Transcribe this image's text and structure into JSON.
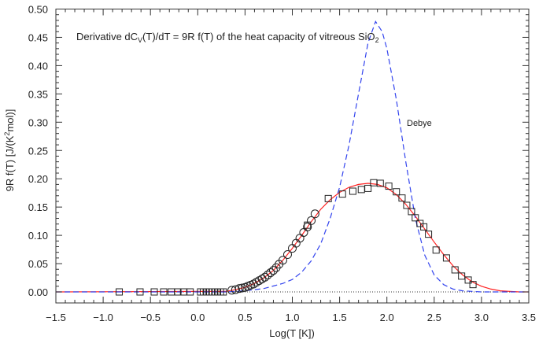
{
  "chart_data": {
    "type": "scatter",
    "title": "Derivative dC",
    "title_sub": "V",
    "title_mid": "(T)/dT = 9R f(T) of the heat capacity of vitreous SiO",
    "title_sub2": "2",
    "xlabel": "Log(T [K])",
    "ylabel_pre": "9R f(T) [J/(K",
    "ylabel_sup": "2",
    "ylabel_post": "mol)]",
    "xlim": [
      -1.5,
      3.5
    ],
    "ylim": [
      0,
      0.5
    ],
    "xticks": [
      "-1.5",
      "-1.0",
      "-0.5",
      "0.0",
      "0.5",
      "1.0",
      "1.5",
      "2.0",
      "2.5",
      "3.0",
      "3.5"
    ],
    "yticks": [
      "0.00",
      "0.05",
      "0.10",
      "0.15",
      "0.20",
      "0.25",
      "0.30",
      "0.35",
      "0.40",
      "0.45",
      "0.50"
    ],
    "annotation": "Debye",
    "series": [
      {
        "name": "squares",
        "marker": "square",
        "color": "#000000",
        "x": [
          -0.83,
          -0.61,
          -0.46,
          -0.36,
          -0.28,
          -0.21,
          -0.15,
          -0.08,
          0.03,
          0.06,
          0.09,
          0.12,
          0.15,
          0.18,
          0.21,
          0.24,
          0.27,
          1.16,
          1.38,
          1.53,
          1.64,
          1.73,
          1.8,
          1.86,
          1.93,
          2.02,
          2.1,
          2.16,
          2.21,
          2.26,
          2.3,
          2.35,
          2.39,
          2.44,
          2.52,
          2.63,
          2.72,
          2.79,
          2.86,
          2.91
        ],
        "y": [
          0,
          0,
          0,
          0,
          0,
          0,
          0,
          0,
          0,
          0,
          0,
          0,
          0,
          0,
          0,
          0,
          0,
          0.118,
          0.165,
          0.173,
          0.178,
          0.181,
          0.183,
          0.193,
          0.192,
          0.187,
          0.177,
          0.166,
          0.153,
          0.142,
          0.131,
          0.121,
          0.115,
          0.102,
          0.074,
          0.06,
          0.039,
          0.028,
          0.021,
          0.013
        ]
      },
      {
        "name": "circles",
        "marker": "circle",
        "color": "#000000",
        "x": [
          0.36,
          0.4,
          0.44,
          0.47,
          0.5,
          0.53,
          0.56,
          0.59,
          0.62,
          0.65,
          0.68,
          0.71,
          0.74,
          0.77,
          0.8,
          0.83,
          0.86,
          0.9,
          0.95,
          1.0,
          1.04,
          1.08,
          1.12,
          1.16,
          1.2,
          1.24
        ],
        "y": [
          0.003,
          0.004,
          0.006,
          0.007,
          0.008,
          0.01,
          0.012,
          0.014,
          0.017,
          0.02,
          0.023,
          0.026,
          0.03,
          0.034,
          0.038,
          0.043,
          0.049,
          0.056,
          0.066,
          0.077,
          0.086,
          0.095,
          0.105,
          0.115,
          0.126,
          0.138
        ]
      },
      {
        "name": "fit",
        "line": "solid",
        "color": "#ff2020",
        "x": [
          -1.5,
          0.3,
          0.4,
          0.5,
          0.6,
          0.7,
          0.8,
          0.9,
          1.0,
          1.1,
          1.2,
          1.3,
          1.4,
          1.5,
          1.6,
          1.7,
          1.8,
          1.9,
          2.0,
          2.1,
          2.2,
          2.3,
          2.4,
          2.5,
          2.6,
          2.7,
          2.8,
          2.9,
          3.0,
          3.1,
          3.2,
          3.3,
          3.4,
          3.5
        ],
        "y": [
          0,
          0.001,
          0.004,
          0.008,
          0.015,
          0.025,
          0.038,
          0.056,
          0.077,
          0.1,
          0.124,
          0.146,
          0.163,
          0.176,
          0.185,
          0.19,
          0.192,
          0.19,
          0.184,
          0.172,
          0.155,
          0.134,
          0.111,
          0.088,
          0.066,
          0.046,
          0.03,
          0.018,
          0.01,
          0.005,
          0.002,
          0.001,
          0,
          0
        ]
      },
      {
        "name": "Debye",
        "line": "dashed",
        "color": "#3344ee",
        "x": [
          -1.5,
          0.3,
          0.5,
          0.7,
          0.9,
          1.0,
          1.1,
          1.2,
          1.3,
          1.4,
          1.5,
          1.6,
          1.7,
          1.8,
          1.88,
          1.95,
          2.0,
          2.1,
          2.2,
          2.3,
          2.4,
          2.5,
          2.6,
          2.7,
          2.8,
          3.0,
          3.5
        ],
        "y": [
          0,
          0,
          0.002,
          0.006,
          0.015,
          0.022,
          0.035,
          0.055,
          0.085,
          0.13,
          0.185,
          0.26,
          0.35,
          0.44,
          0.478,
          0.46,
          0.43,
          0.34,
          0.23,
          0.13,
          0.065,
          0.03,
          0.013,
          0.005,
          0.002,
          0,
          0
        ]
      }
    ]
  }
}
